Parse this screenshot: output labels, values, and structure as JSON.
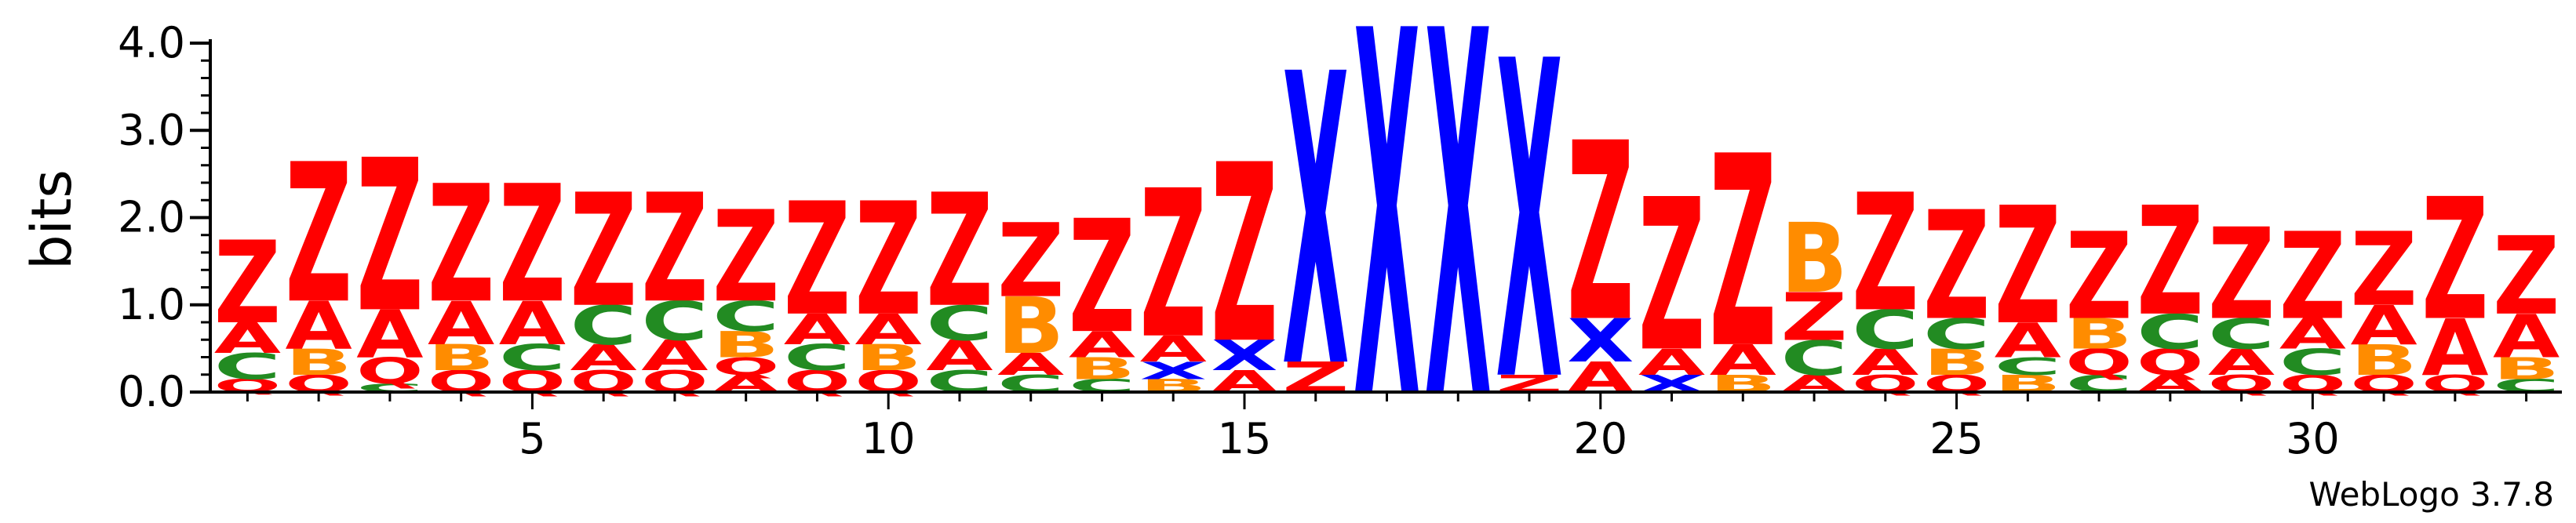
{
  "chart_data": {
    "type": "sequence-logo",
    "ylabel": "bits",
    "ylim": [
      0,
      4.0
    ],
    "yticks": [
      "0.0",
      "1.0",
      "2.0",
      "3.0",
      "4.0"
    ],
    "xticks": [
      5,
      10,
      15,
      20,
      25,
      30
    ],
    "positions": 33,
    "colors": {
      "Z": "#ff0000",
      "A": "#ff0000",
      "Q": "#ff0000",
      "C": "#228b22",
      "B": "#ff8c00",
      "X": "#0000ff",
      "P": "#800080"
    },
    "columns": [
      {
        "pos": 1,
        "stack": [
          [
            "Q",
            0.15
          ],
          [
            "C",
            0.3
          ],
          [
            "A",
            0.35
          ],
          [
            "Z",
            0.95
          ]
        ]
      },
      {
        "pos": 2,
        "stack": [
          [
            "Q",
            0.2
          ],
          [
            "B",
            0.3
          ],
          [
            "A",
            0.55
          ],
          [
            "Z",
            1.6
          ]
        ]
      },
      {
        "pos": 3,
        "stack": [
          [
            "C",
            0.1
          ],
          [
            "Q",
            0.3
          ],
          [
            "A",
            0.55
          ],
          [
            "Z",
            1.75
          ]
        ]
      },
      {
        "pos": 4,
        "stack": [
          [
            "Q",
            0.25
          ],
          [
            "B",
            0.3
          ],
          [
            "A",
            0.5
          ],
          [
            "Z",
            1.35
          ]
        ]
      },
      {
        "pos": 5,
        "stack": [
          [
            "Q",
            0.25
          ],
          [
            "C",
            0.3
          ],
          [
            "A",
            0.5
          ],
          [
            "Z",
            1.35
          ]
        ]
      },
      {
        "pos": 6,
        "stack": [
          [
            "Q",
            0.25
          ],
          [
            "A",
            0.3
          ],
          [
            "C",
            0.45
          ],
          [
            "Z",
            1.3
          ]
        ]
      },
      {
        "pos": 7,
        "stack": [
          [
            "Q",
            0.25
          ],
          [
            "A",
            0.35
          ],
          [
            "C",
            0.45
          ],
          [
            "Z",
            1.25
          ]
        ]
      },
      {
        "pos": 8,
        "stack": [
          [
            "A",
            0.2
          ],
          [
            "Q",
            0.2
          ],
          [
            "B",
            0.3
          ],
          [
            "C",
            0.35
          ],
          [
            "Z",
            1.05
          ]
        ]
      },
      {
        "pos": 9,
        "stack": [
          [
            "Q",
            0.25
          ],
          [
            "C",
            0.3
          ],
          [
            "A",
            0.35
          ],
          [
            "Z",
            1.3
          ]
        ]
      },
      {
        "pos": 10,
        "stack": [
          [
            "Q",
            0.25
          ],
          [
            "B",
            0.3
          ],
          [
            "A",
            0.35
          ],
          [
            "Z",
            1.3
          ]
        ]
      },
      {
        "pos": 11,
        "stack": [
          [
            "C",
            0.25
          ],
          [
            "A",
            0.35
          ],
          [
            "C",
            0.4
          ],
          [
            "Z",
            1.3
          ]
        ]
      },
      {
        "pos": 12,
        "stack": [
          [
            "C",
            0.2
          ],
          [
            "A",
            0.25
          ],
          [
            "B",
            0.65
          ],
          [
            "Z",
            0.85
          ]
        ]
      },
      {
        "pos": 13,
        "stack": [
          [
            "C",
            0.15
          ],
          [
            "B",
            0.25
          ],
          [
            "A",
            0.3
          ],
          [
            "Z",
            1.3
          ]
        ]
      },
      {
        "pos": 14,
        "stack": [
          [
            "B",
            0.15
          ],
          [
            "X",
            0.2
          ],
          [
            "A",
            0.3
          ],
          [
            "Z",
            1.7
          ]
        ]
      },
      {
        "pos": 15,
        "stack": [
          [
            "A",
            0.25
          ],
          [
            "X",
            0.35
          ],
          [
            "Z",
            2.05
          ]
        ]
      },
      {
        "pos": 16,
        "stack": [
          [
            "Z",
            0.35
          ],
          [
            "X",
            3.35
          ]
        ]
      },
      {
        "pos": 17,
        "stack": [
          [
            "X",
            4.2
          ]
        ]
      },
      {
        "pos": 18,
        "stack": [
          [
            "X",
            4.2
          ]
        ]
      },
      {
        "pos": 19,
        "stack": [
          [
            "Z",
            0.2
          ],
          [
            "X",
            3.65
          ]
        ]
      },
      {
        "pos": 20,
        "stack": [
          [
            "A",
            0.35
          ],
          [
            "X",
            0.5
          ],
          [
            "Z",
            2.05
          ]
        ]
      },
      {
        "pos": 21,
        "stack": [
          [
            "X",
            0.2
          ],
          [
            "A",
            0.3
          ],
          [
            "Z",
            1.75
          ]
        ]
      },
      {
        "pos": 22,
        "stack": [
          [
            "B",
            0.2
          ],
          [
            "A",
            0.35
          ],
          [
            "Z",
            2.2
          ]
        ]
      },
      {
        "pos": 23,
        "stack": [
          [
            "A",
            0.2
          ],
          [
            "C",
            0.4
          ],
          [
            "Z",
            0.55
          ],
          [
            "B",
            0.8
          ]
        ]
      },
      {
        "pos": 24,
        "stack": [
          [
            "Q",
            0.2
          ],
          [
            "A",
            0.3
          ],
          [
            "C",
            0.45
          ],
          [
            "Z",
            1.35
          ]
        ]
      },
      {
        "pos": 25,
        "stack": [
          [
            "Q",
            0.2
          ],
          [
            "B",
            0.3
          ],
          [
            "C",
            0.35
          ],
          [
            "Z",
            1.25
          ]
        ]
      },
      {
        "pos": 26,
        "stack": [
          [
            "B",
            0.2
          ],
          [
            "C",
            0.2
          ],
          [
            "A",
            0.4
          ],
          [
            "Z",
            1.35
          ]
        ]
      },
      {
        "pos": 27,
        "stack": [
          [
            "C",
            0.2
          ],
          [
            "Q",
            0.3
          ],
          [
            "B",
            0.35
          ],
          [
            "Z",
            1.0
          ]
        ]
      },
      {
        "pos": 28,
        "stack": [
          [
            "A",
            0.2
          ],
          [
            "Q",
            0.3
          ],
          [
            "C",
            0.4
          ],
          [
            "Z",
            1.25
          ]
        ]
      },
      {
        "pos": 29,
        "stack": [
          [
            "Q",
            0.2
          ],
          [
            "A",
            0.3
          ],
          [
            "C",
            0.35
          ],
          [
            "Z",
            1.05
          ]
        ]
      },
      {
        "pos": 30,
        "stack": [
          [
            "Q",
            0.2
          ],
          [
            "C",
            0.3
          ],
          [
            "A",
            0.35
          ],
          [
            "Z",
            1.0
          ]
        ]
      },
      {
        "pos": 31,
        "stack": [
          [
            "Q",
            0.2
          ],
          [
            "B",
            0.35
          ],
          [
            "A",
            0.45
          ],
          [
            "Z",
            0.85
          ]
        ]
      },
      {
        "pos": 32,
        "stack": [
          [
            "Q",
            0.2
          ],
          [
            "A",
            0.65
          ],
          [
            "Z",
            1.4
          ]
        ]
      },
      {
        "pos": 33,
        "stack": [
          [
            "C",
            0.15
          ],
          [
            "B",
            0.25
          ],
          [
            "A",
            0.5
          ],
          [
            "Z",
            0.9
          ]
        ]
      }
    ]
  },
  "footer": {
    "brand": "WebLogo 3.7.8"
  }
}
